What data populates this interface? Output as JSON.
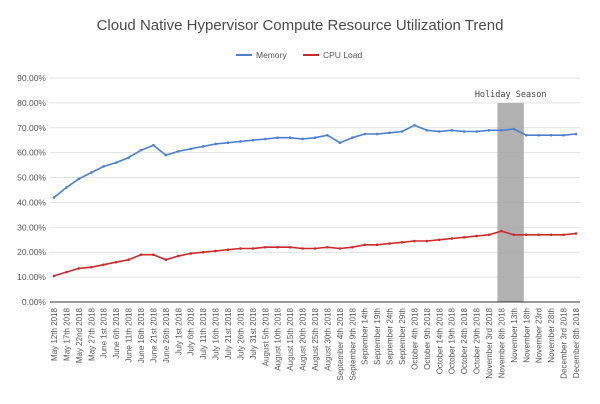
{
  "chart_data": {
    "type": "line",
    "title": "Cloud Native Hypervisor Compute Resource Utilization Trend",
    "xlabel": "",
    "ylabel": "",
    "ylim": [
      0,
      90
    ],
    "yticks": [
      "0.00%",
      "10.00%",
      "20.00%",
      "30.00%",
      "40.00%",
      "50.00%",
      "60.00%",
      "70.00%",
      "80.00%",
      "90.00%"
    ],
    "grid": true,
    "legend_position": "top-center",
    "x": [
      "May 12th 2018",
      "May 17th 2018",
      "May 22nd 2018",
      "May 27th 2018",
      "June 1st 2018",
      "June 6th 2018",
      "June 11th 2018",
      "June 16th 2018",
      "June 21st 2018",
      "June 26th 2018",
      "July 1st 2018",
      "July 6th 2018",
      "July 11th 2018",
      "July 16th 2018",
      "July 21st 2018",
      "July 26th 2018",
      "July 31st 2018",
      "August 5th 2018",
      "August 10th 2018",
      "August 15th 2018",
      "August 20th 2018",
      "August 25th 2018",
      "August 30th 2018",
      "September 4th 2018",
      "September 9th 2018",
      "September 14th",
      "September 19th",
      "September 24th",
      "September 29th",
      "October 4th 2018",
      "October 9th 2018",
      "October 14th 2018",
      "October 19th 2018",
      "October 24th 2018",
      "October 29th 2018",
      "November 3rd 2018",
      "November 8th 2018",
      "November 13th",
      "November 18th",
      "November 23rd",
      "November 28th",
      "December 3rd 2018",
      "December 8th 2018"
    ],
    "series": [
      {
        "name": "Memory",
        "color": "#4a7fd0",
        "values": [
          42,
          46,
          49.5,
          52,
          54.5,
          56,
          58,
          61,
          63,
          59,
          60.5,
          61.5,
          62.5,
          63.5,
          64,
          64.5,
          65,
          65.5,
          66,
          66,
          65.5,
          66,
          67,
          64,
          66,
          67.5,
          67.5,
          68,
          68.5,
          71,
          69,
          68.5,
          69,
          68.5,
          68.5,
          69,
          69,
          69.5,
          67,
          67,
          67,
          67,
          67.5
        ]
      },
      {
        "name": "CPU Load",
        "color": "#cc2a2a",
        "values": [
          10.5,
          12,
          13.5,
          14,
          15,
          16,
          17,
          19,
          19,
          17,
          18.5,
          19.5,
          20,
          20.5,
          21,
          21.5,
          21.5,
          22,
          22,
          22,
          21.5,
          21.5,
          22,
          21.5,
          22,
          23,
          23,
          23.5,
          24,
          24.5,
          24.5,
          25,
          25.5,
          26,
          26.5,
          27,
          28.5,
          27,
          27,
          27,
          27,
          27,
          27.5
        ]
      }
    ],
    "annotations": [
      {
        "label": "Holiday Season",
        "x_start": "November 8th 2018",
        "x_end": "November 13th",
        "color": "#a8a8a8"
      }
    ]
  }
}
